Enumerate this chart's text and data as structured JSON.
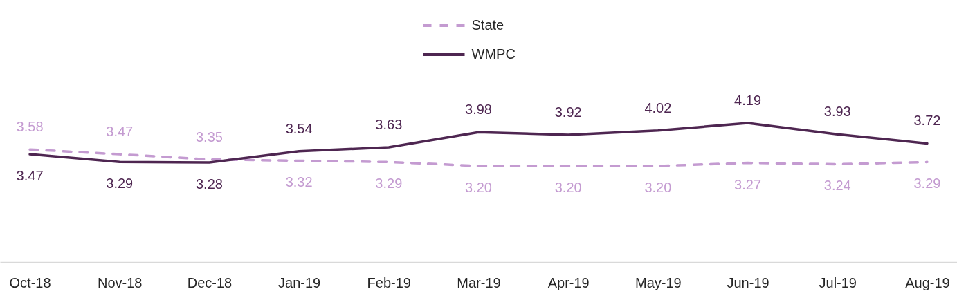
{
  "chart_data": {
    "type": "line",
    "categories": [
      "Oct-18",
      "Nov-18",
      "Dec-18",
      "Jan-19",
      "Feb-19",
      "Mar-19",
      "Apr-19",
      "May-19",
      "Jun-19",
      "Jul-19",
      "Aug-19"
    ],
    "tick_labels": "x",
    "legend": "top",
    "series": [
      {
        "name": "State",
        "color": "#c49bd1",
        "line_style": "dashed",
        "values": [
          3.58,
          3.47,
          3.35,
          3.32,
          3.29,
          3.2,
          3.2,
          3.2,
          3.27,
          3.24,
          3.29
        ],
        "value_labels": [
          "3.58",
          "3.47",
          "3.35",
          "3.32",
          "3.29",
          "3.20",
          "3.20",
          "3.20",
          "3.27",
          "3.24",
          "3.29"
        ]
      },
      {
        "name": "WMPC",
        "color": "#4e2651",
        "line_style": "solid",
        "values": [
          3.47,
          3.29,
          3.28,
          3.54,
          3.63,
          3.98,
          3.92,
          4.02,
          4.19,
          3.93,
          3.72
        ],
        "value_labels": [
          "3.47",
          "3.29",
          "3.28",
          "3.54",
          "3.63",
          "3.98",
          "3.92",
          "4.02",
          "4.19",
          "3.93",
          "3.72"
        ]
      }
    ]
  }
}
